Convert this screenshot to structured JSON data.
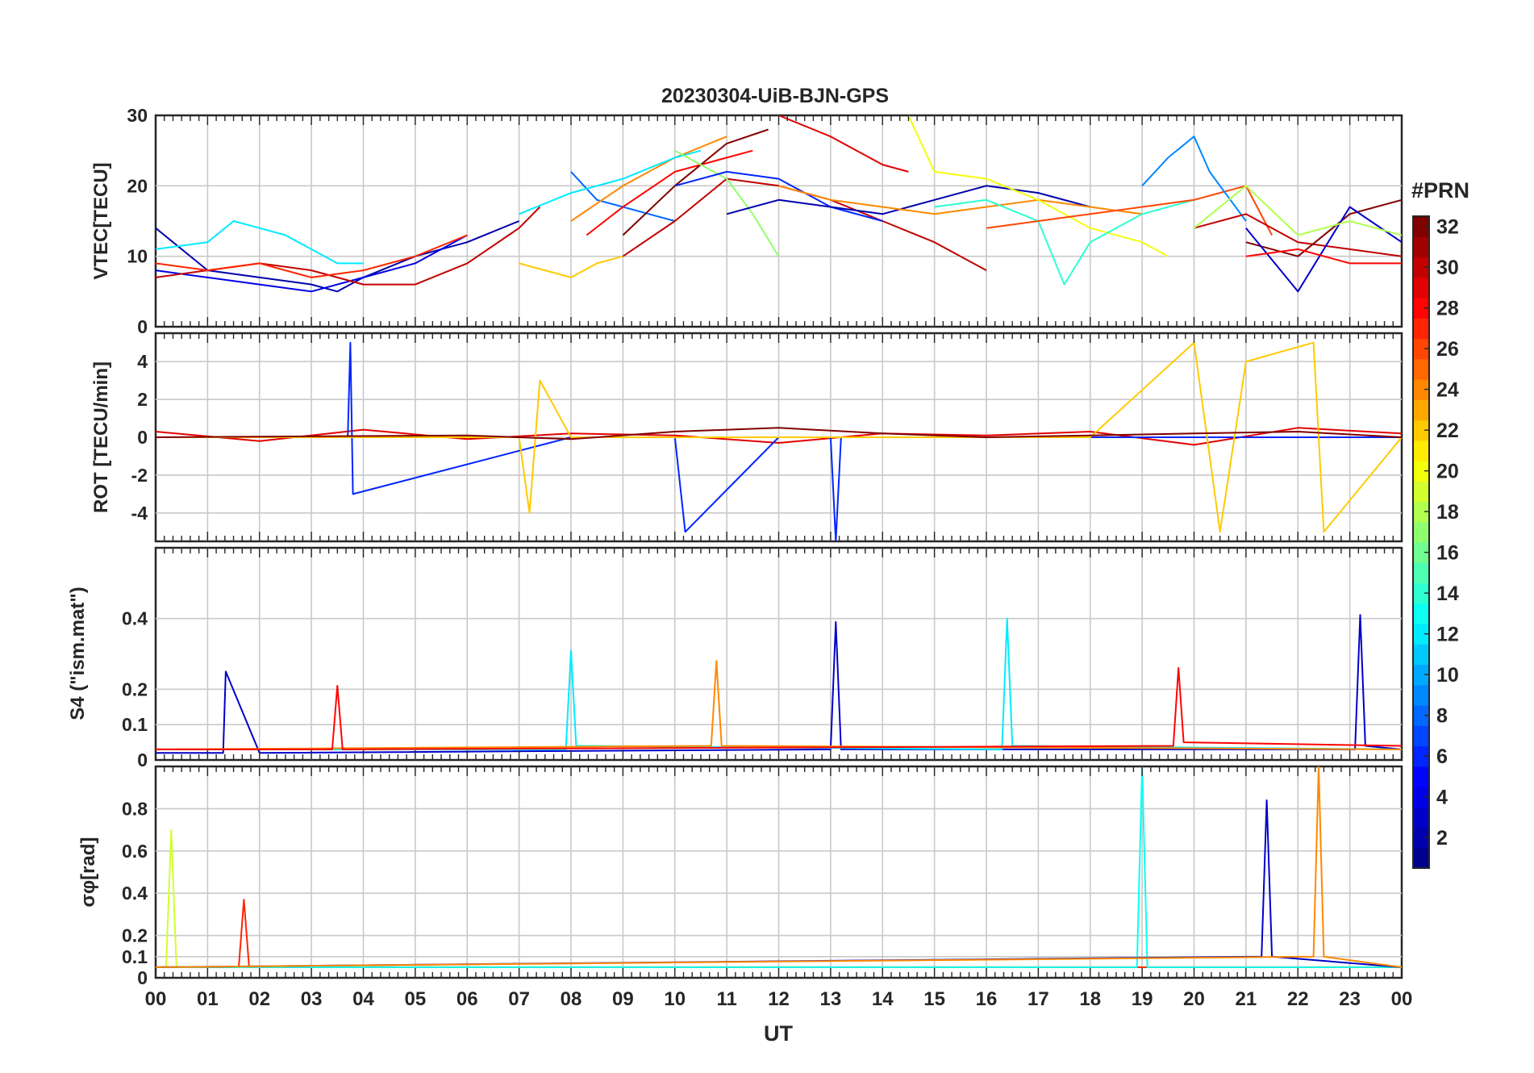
{
  "chart_data": {
    "type": "line",
    "title": "20230304-UiB-BJN-GPS",
    "xlabel": "UT",
    "x_ticks": [
      "00",
      "01",
      "02",
      "03",
      "04",
      "05",
      "06",
      "07",
      "08",
      "09",
      "10",
      "11",
      "12",
      "13",
      "14",
      "15",
      "16",
      "17",
      "18",
      "19",
      "20",
      "21",
      "22",
      "23",
      "00"
    ],
    "x_range_hours": [
      0,
      24
    ],
    "grid": true,
    "colormap": "jet",
    "colorbar": {
      "title": "#PRN",
      "range": [
        1,
        32
      ],
      "ticks": [
        "2",
        "4",
        "6",
        "8",
        "10",
        "12",
        "14",
        "16",
        "18",
        "20",
        "22",
        "24",
        "26",
        "28",
        "30",
        "32"
      ],
      "colors": [
        "#00008f",
        "#0000ff",
        "#0080ff",
        "#00ffff",
        "#80ff80",
        "#ffff00",
        "#ff8000",
        "#ff0000",
        "#800000"
      ]
    },
    "panels": [
      {
        "ylabel": "VTEC[TECU]",
        "ylim": [
          0,
          30
        ],
        "y_ticks": [
          "0",
          "10",
          "20",
          "30"
        ],
        "series": [
          {
            "prn": 2,
            "x": [
              0,
              1,
              2,
              3,
              3.5,
              4,
              5,
              6,
              7
            ],
            "y": [
              14,
              8,
              7,
              6,
              5,
              7,
              10,
              12,
              15
            ]
          },
          {
            "prn": 4,
            "x": [
              0,
              1,
              2,
              3,
              4,
              5,
              6
            ],
            "y": [
              8,
              7,
              6,
              5,
              7,
              9,
              13
            ]
          },
          {
            "prn": 12,
            "x": [
              0,
              1,
              1.5,
              2,
              2.5,
              3,
              3.5,
              4
            ],
            "y": [
              11,
              12,
              15,
              14,
              13,
              11,
              9,
              9
            ]
          },
          {
            "prn": 30,
            "x": [
              0,
              1,
              2,
              3,
              4,
              5,
              6,
              7,
              7.4
            ],
            "y": [
              7,
              8,
              9,
              8,
              6,
              6,
              9,
              14,
              17
            ]
          },
          {
            "prn": 27,
            "x": [
              0,
              1,
              2,
              3,
              4,
              5,
              6
            ],
            "y": [
              9,
              8,
              9,
              7,
              8,
              10,
              13
            ]
          },
          {
            "prn": 22,
            "x": [
              7,
              7.5,
              8,
              8.5,
              9
            ],
            "y": [
              9,
              8,
              7,
              9,
              10
            ]
          },
          {
            "prn": 8,
            "x": [
              8,
              8.5,
              9,
              9.5,
              10
            ],
            "y": [
              22,
              18,
              17,
              16,
              15
            ]
          },
          {
            "prn": 24,
            "x": [
              8,
              9,
              10,
              11
            ],
            "y": [
              15,
              20,
              24,
              27
            ]
          },
          {
            "prn": 28,
            "x": [
              8.3,
              9,
              10,
              11,
              11.5
            ],
            "y": [
              13,
              17,
              22,
              24,
              25
            ]
          },
          {
            "prn": 30,
            "x": [
              9,
              10,
              11,
              12,
              13,
              14,
              15,
              16
            ],
            "y": [
              10,
              15,
              21,
              20,
              18,
              15,
              12,
              8
            ]
          },
          {
            "prn": 32,
            "x": [
              9,
              10,
              11,
              11.8
            ],
            "y": [
              13,
              20,
              26,
              28
            ]
          },
          {
            "prn": 12,
            "x": [
              7,
              8,
              9,
              10,
              10.5
            ],
            "y": [
              16,
              19,
              21,
              24,
              25
            ]
          },
          {
            "prn": 17,
            "x": [
              10,
              11,
              11.5,
              12
            ],
            "y": [
              25,
              21,
              16,
              10
            ]
          },
          {
            "prn": 6,
            "x": [
              10,
              11,
              12,
              13,
              14
            ],
            "y": [
              20,
              22,
              21,
              17,
              15
            ]
          },
          {
            "prn": 2,
            "x": [
              11,
              12,
              13,
              14,
              15,
              16,
              17,
              18
            ],
            "y": [
              16,
              18,
              17,
              16,
              18,
              20,
              19,
              17
            ]
          },
          {
            "prn": 29,
            "x": [
              12,
              13,
              14,
              14.5
            ],
            "y": [
              30,
              27,
              23,
              22
            ]
          },
          {
            "prn": 24,
            "x": [
              12,
              13,
              14,
              15,
              16,
              17,
              18,
              19
            ],
            "y": [
              20,
              18,
              17,
              16,
              17,
              18,
              17,
              16
            ]
          },
          {
            "prn": 20,
            "x": [
              14.5,
              15,
              16,
              17,
              18,
              19,
              19.5
            ],
            "y": [
              30,
              22,
              21,
              18,
              14,
              12,
              10
            ]
          },
          {
            "prn": 14,
            "x": [
              15,
              16,
              17,
              17.5,
              18,
              19,
              20
            ],
            "y": [
              17,
              18,
              15,
              6,
              12,
              16,
              18
            ]
          },
          {
            "prn": 26,
            "x": [
              16,
              17,
              18,
              19,
              20,
              21,
              21.5
            ],
            "y": [
              14,
              15,
              16,
              17,
              18,
              20,
              13
            ]
          },
          {
            "prn": 9,
            "x": [
              19,
              19.5,
              20,
              20.3,
              20.6,
              21
            ],
            "y": [
              20,
              24,
              27,
              22,
              19,
              15
            ]
          },
          {
            "prn": 30,
            "x": [
              20,
              21,
              22,
              23,
              24
            ],
            "y": [
              14,
              16,
              12,
              11,
              10
            ]
          },
          {
            "prn": 32,
            "x": [
              21,
              22,
              23,
              24
            ],
            "y": [
              12,
              10,
              16,
              18
            ]
          },
          {
            "prn": 3,
            "x": [
              21,
              22,
              23,
              24
            ],
            "y": [
              14,
              5,
              17,
              12
            ]
          },
          {
            "prn": 28,
            "x": [
              21,
              22,
              23,
              24
            ],
            "y": [
              10,
              11,
              9,
              9
            ]
          },
          {
            "prn": 18,
            "x": [
              20,
              21,
              22,
              23,
              24
            ],
            "y": [
              14,
              20,
              13,
              15,
              13
            ]
          }
        ]
      },
      {
        "ylabel": "ROT [TECU/min]",
        "ylim": [
          -5.5,
          5.5
        ],
        "y_ticks": [
          "-4",
          "-2",
          "0",
          "2",
          "4"
        ],
        "series": [
          {
            "prn": 29,
            "x": [
              0,
              2,
              4,
              6,
              8,
              10,
              12,
              14,
              16,
              18,
              20,
              22,
              24
            ],
            "y": [
              0.3,
              -0.2,
              0.4,
              -0.1,
              0.2,
              0.1,
              -0.3,
              0.2,
              0.1,
              0.3,
              -0.4,
              0.5,
              0.2
            ]
          },
          {
            "prn": 6,
            "x": [
              0,
              3.7,
              3.75,
              3.8,
              8,
              10,
              10.2,
              12,
              13,
              13.1,
              13.2,
              16,
              24
            ],
            "y": [
              0,
              0,
              5,
              -3,
              0,
              0,
              -5,
              0,
              0,
              -5.5,
              0,
              0,
              0
            ]
          },
          {
            "prn": 22,
            "x": [
              0,
              7,
              7.2,
              7.4,
              8,
              9,
              12,
              18,
              20,
              20.5,
              21,
              22.3,
              22.5,
              24
            ],
            "y": [
              0,
              0,
              -4,
              3,
              0,
              0,
              0,
              0,
              5,
              -5,
              4,
              5,
              -5,
              0
            ]
          },
          {
            "prn": 32,
            "x": [
              0,
              6,
              8,
              10,
              12,
              14,
              16,
              18,
              20,
              22,
              24
            ],
            "y": [
              0,
              0.1,
              -0.1,
              0.3,
              0.5,
              0.2,
              0,
              0.1,
              0.2,
              0.3,
              0
            ]
          }
        ]
      },
      {
        "ylabel": "S4 (\"ism.mat\")",
        "ylim": [
          0,
          0.6
        ],
        "y_ticks": [
          "0",
          "0.1",
          "0.2",
          "0.4"
        ],
        "series": [
          {
            "prn": 3,
            "x": [
              0,
              1.3,
              1.35,
              2,
              13,
              13.1,
              13.2,
              23.1,
              23.2,
              23.3,
              24
            ],
            "y": [
              0.02,
              0.02,
              0.25,
              0.02,
              0.03,
              0.39,
              0.03,
              0.03,
              0.41,
              0.04,
              0.03
            ]
          },
          {
            "prn": 12,
            "x": [
              0,
              7.9,
              8,
              8.1,
              16.3,
              16.4,
              16.5,
              24
            ],
            "y": [
              0.03,
              0.03,
              0.31,
              0.04,
              0.03,
              0.4,
              0.04,
              0.03
            ]
          },
          {
            "prn": 24,
            "x": [
              0,
              10.7,
              10.8,
              10.9,
              24
            ],
            "y": [
              0.03,
              0.04,
              0.28,
              0.04,
              0.03
            ]
          },
          {
            "prn": 28,
            "x": [
              0,
              3.4,
              3.5,
              3.6,
              19.6,
              19.7,
              19.8,
              24
            ],
            "y": [
              0.03,
              0.03,
              0.21,
              0.03,
              0.04,
              0.26,
              0.05,
              0.04
            ]
          }
        ]
      },
      {
        "ylabel": "σφ[rad]",
        "ylim": [
          0,
          1
        ],
        "y_ticks": [
          "0",
          "0.1",
          "0.2",
          "0.4",
          "0.6",
          "0.8"
        ],
        "series": [
          {
            "prn": 19,
            "x": [
              0,
              0.2,
              0.3,
              0.4,
              24
            ],
            "y": [
              0.05,
              0.05,
              0.7,
              0.05,
              0.05
            ]
          },
          {
            "prn": 27,
            "x": [
              0,
              1.6,
              1.7,
              1.8,
              24
            ],
            "y": [
              0.05,
              0.05,
              0.37,
              0.05,
              0.05
            ]
          },
          {
            "prn": 13,
            "x": [
              0,
              18.9,
              19,
              19.1,
              24
            ],
            "y": [
              0.05,
              0.05,
              1.0,
              0.05,
              0.05
            ]
          },
          {
            "prn": 3,
            "x": [
              0,
              21.3,
              21.4,
              21.5,
              24
            ],
            "y": [
              0.05,
              0.1,
              0.84,
              0.1,
              0.05
            ]
          },
          {
            "prn": 24,
            "x": [
              0,
              22.3,
              22.4,
              22.5,
              24
            ],
            "y": [
              0.05,
              0.1,
              1.0,
              0.1,
              0.05
            ]
          }
        ]
      }
    ]
  }
}
